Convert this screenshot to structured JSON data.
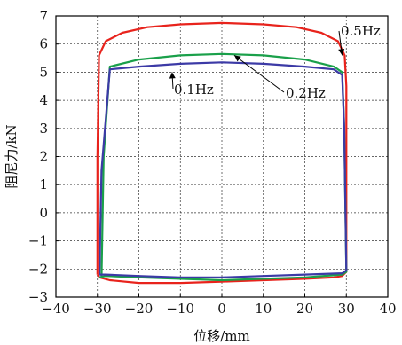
{
  "chart_data": {
    "type": "line",
    "title": "",
    "xlabel": "位移/mm",
    "ylabel": "阻尼力/kN",
    "xlim": [
      -40,
      40
    ],
    "ylim": [
      -3,
      7
    ],
    "xticks": [
      -40,
      -30,
      -20,
      -10,
      0,
      10,
      20,
      30,
      40
    ],
    "yticks": [
      -3,
      -2,
      -1,
      0,
      1,
      2,
      3,
      4,
      5,
      6,
      7
    ],
    "grid": true,
    "annotations": [
      {
        "text": "0.5Hz",
        "series": "0.5Hz",
        "arrow_to": [
          29,
          5.6
        ]
      },
      {
        "text": "0.1Hz",
        "series": "0.1Hz",
        "arrow_to": [
          -12,
          5.0
        ]
      },
      {
        "text": "0.2Hz",
        "series": "0.2Hz",
        "arrow_to": [
          3,
          5.6
        ]
      }
    ],
    "series": [
      {
        "name": "0.5Hz",
        "color": "#e8231c",
        "x": [
          -30,
          -30,
          -29.6,
          -28,
          -24,
          -18,
          -10,
          0,
          10,
          18,
          24,
          28,
          29.6,
          30,
          30,
          30,
          29,
          27,
          20,
          10,
          0,
          -10,
          -20,
          -27,
          -29.5,
          -30
        ],
        "y": [
          -2.2,
          2.0,
          5.6,
          6.1,
          6.4,
          6.6,
          6.7,
          6.75,
          6.7,
          6.6,
          6.4,
          6.1,
          5.6,
          4.5,
          0.0,
          -2.1,
          -2.25,
          -2.3,
          -2.35,
          -2.4,
          -2.45,
          -2.5,
          -2.5,
          -2.4,
          -2.3,
          -2.2
        ]
      },
      {
        "name": "0.2Hz",
        "color": "#1aa04a",
        "x": [
          -29,
          -28.5,
          -27,
          -20,
          -10,
          0,
          10,
          20,
          27,
          29,
          29.5,
          30,
          29,
          20,
          10,
          0,
          -10,
          -20,
          -28,
          -29.5,
          -29
        ],
        "y": [
          -2.3,
          2.0,
          5.2,
          5.45,
          5.6,
          5.65,
          5.6,
          5.45,
          5.2,
          5.0,
          3.0,
          -2.1,
          -2.2,
          -2.3,
          -2.35,
          -2.4,
          -2.35,
          -2.3,
          -2.25,
          -2.3,
          -2.3
        ]
      },
      {
        "name": "0.1Hz",
        "color": "#3c3aa6",
        "x": [
          -29.5,
          -29,
          -27,
          -20,
          -10,
          0,
          10,
          20,
          27,
          29,
          29.5,
          30,
          29,
          20,
          10,
          0,
          -10,
          -20,
          -28,
          -29.5
        ],
        "y": [
          -2.2,
          1.5,
          5.1,
          5.2,
          5.3,
          5.35,
          5.3,
          5.2,
          5.1,
          4.9,
          3.0,
          -2.05,
          -2.15,
          -2.2,
          -2.25,
          -2.3,
          -2.3,
          -2.25,
          -2.2,
          -2.2
        ]
      }
    ]
  }
}
